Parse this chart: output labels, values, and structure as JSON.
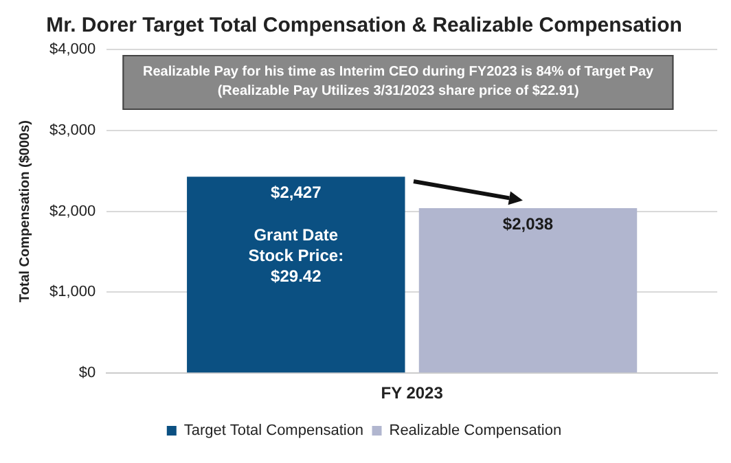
{
  "chart_data": {
    "type": "bar",
    "title": "Mr. Dorer Target Total Compensation & Realizable Compensation",
    "ylabel": "Total Compensation ($000s)",
    "categories": [
      "FY 2023"
    ],
    "series": [
      {
        "name": "Target Total Compensation",
        "color": "#0b5082",
        "values": [
          2427
        ],
        "value_labels": [
          "$2,427"
        ]
      },
      {
        "name": "Realizable Compensation",
        "color": "#b1b6cf",
        "values": [
          2038
        ],
        "value_labels": [
          "$2,038"
        ]
      }
    ],
    "ylim": [
      0,
      4000
    ],
    "yticks": [
      {
        "value": 0,
        "label": "$0"
      },
      {
        "value": 1000,
        "label": "$1,000"
      },
      {
        "value": 2000,
        "label": "$2,000"
      },
      {
        "value": 3000,
        "label": "$3,000"
      },
      {
        "value": 4000,
        "label": "$4,000"
      }
    ],
    "grid": "y",
    "legend": "bottom",
    "annotations": [
      "Realizable Pay for his time as Interim CEO during FY2023 is 84% of Target Pay",
      "(Realizable Pay Utilizes 3/31/2023 share price of $22.91)",
      "Grant Date Stock Price: $29.42"
    ]
  }
}
